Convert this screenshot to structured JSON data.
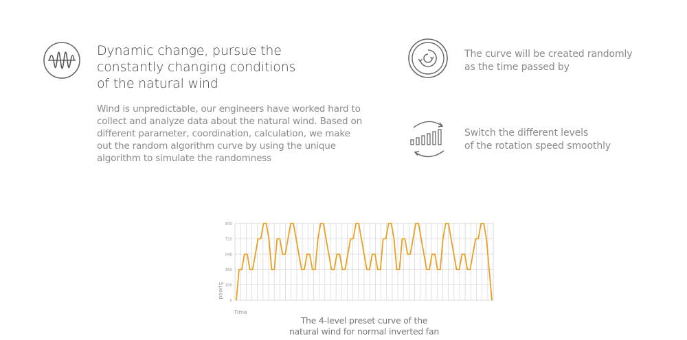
{
  "heading": {
    "lines": [
      "Dynamic change, pursue the",
      "constantly changing conditions",
      "of the natural wind"
    ]
  },
  "description": {
    "lines": [
      "Wind is unpredictable, our engineers have worked hard to",
      "collect and analyze data about the natural wind. Based on",
      "different parameter, coordination, calculation, we make",
      "out the random algorithm curve by using the unique",
      "algorithm to simulate the randomness"
    ]
  },
  "features": [
    {
      "icon": "random-curve-icon",
      "lines": [
        "The curve will be created randomly",
        "as the time passed by"
      ]
    },
    {
      "icon": "speed-levels-icon",
      "lines": [
        "Switch the different levels",
        "of the rotation speed smoothly"
      ]
    }
  ],
  "main_icon": "waveform-icon",
  "caption": {
    "lines": [
      "The 4-level preset curve of the",
      "natural wind for normal inverted fan"
    ]
  },
  "colors": {
    "curve": "#e8a021",
    "grid": "#d8d8d8",
    "text": "#8a8a8a"
  },
  "chart_data": {
    "type": "line",
    "xlabel": "Time",
    "ylabel": "Speed",
    "yticks": [
      "0",
      "180",
      "360",
      "540",
      "720",
      "900"
    ],
    "ylim": [
      0,
      900
    ],
    "grid": true,
    "series": [
      {
        "y": [
          0,
          360,
          360,
          540,
          540,
          360,
          360,
          540,
          720,
          720,
          900,
          900,
          720,
          360,
          360,
          720,
          720,
          540,
          540,
          720,
          900,
          900,
          720,
          540,
          360,
          360,
          540,
          540,
          360,
          360,
          720,
          900,
          900,
          720,
          540,
          360,
          360,
          540,
          540,
          360,
          360,
          540,
          720,
          720,
          900,
          900,
          720,
          540,
          360,
          360,
          540,
          540,
          360,
          360,
          720,
          720,
          900,
          900,
          720,
          360,
          360,
          720,
          720,
          540,
          540,
          720,
          900,
          900,
          720,
          540,
          360,
          360,
          540,
          540,
          360,
          360,
          720,
          900,
          900,
          720,
          540,
          360,
          360,
          540,
          540,
          360,
          360,
          540,
          720,
          720,
          900,
          900,
          720,
          360,
          0
        ]
      }
    ]
  }
}
